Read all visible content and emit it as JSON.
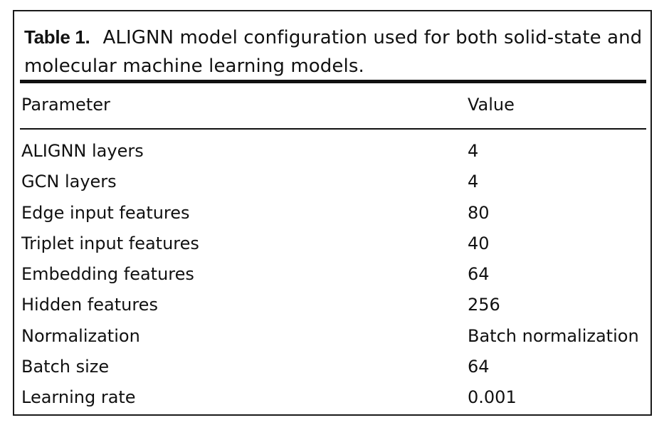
{
  "table": {
    "label": "Table 1.",
    "caption": "ALIGNN model configuration used for both solid-state and molecular machine learning models.",
    "columns": [
      "Parameter",
      "Value"
    ],
    "rows": [
      {
        "parameter": "ALIGNN layers",
        "value": "4"
      },
      {
        "parameter": "GCN layers",
        "value": "4"
      },
      {
        "parameter": "Edge input features",
        "value": "80"
      },
      {
        "parameter": "Triplet input features",
        "value": "40"
      },
      {
        "parameter": "Embedding features",
        "value": "64"
      },
      {
        "parameter": "Hidden features",
        "value": "256"
      },
      {
        "parameter": "Normalization",
        "value": "Batch normalization"
      },
      {
        "parameter": "Batch size",
        "value": "64"
      },
      {
        "parameter": "Learning rate",
        "value": "0.001"
      }
    ]
  }
}
